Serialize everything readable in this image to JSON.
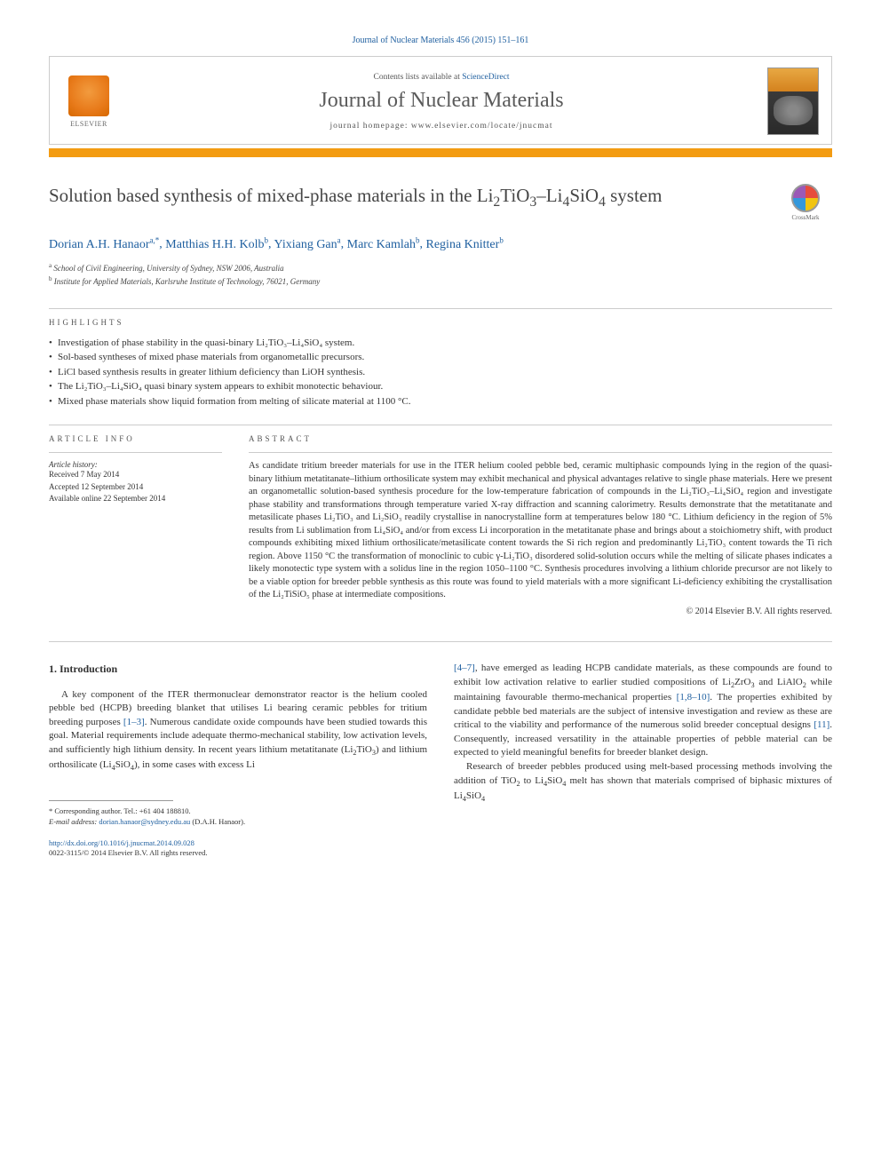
{
  "citation": "Journal of Nuclear Materials 456 (2015) 151–161",
  "header": {
    "contents_prefix": "Contents lists available at ",
    "contents_link": "ScienceDirect",
    "journal_name": "Journal of Nuclear Materials",
    "homepage_prefix": "journal homepage: ",
    "homepage_url": "www.elsevier.com/locate/jnucmat",
    "elsevier_label": "ELSEVIER"
  },
  "crossmark_label": "CrossMark",
  "title": "Solution based synthesis of mixed-phase materials in the Li₂TiO₃–Li₄SiO₄ system",
  "authors": [
    {
      "name": "Dorian A.H. Hanaor",
      "marks": "a,*"
    },
    {
      "name": "Matthias H.H. Kolb",
      "marks": "b"
    },
    {
      "name": "Yixiang Gan",
      "marks": "a"
    },
    {
      "name": "Marc Kamlah",
      "marks": "b"
    },
    {
      "name": "Regina Knitter",
      "marks": "b"
    }
  ],
  "affiliations": [
    {
      "mark": "a",
      "text": "School of Civil Engineering, University of Sydney, NSW 2006, Australia"
    },
    {
      "mark": "b",
      "text": "Institute for Applied Materials, Karlsruhe Institute of Technology, 76021, Germany"
    }
  ],
  "highlights_heading": "HIGHLIGHTS",
  "highlights": [
    "Investigation of phase stability in the quasi-binary Li₂TiO₃–Li₄SiO₄ system.",
    "Sol-based syntheses of mixed phase materials from organometallic precursors.",
    "LiCl based synthesis results in greater lithium deficiency than LiOH synthesis.",
    "The Li₂TiO₃–Li₄SiO₄ quasi binary system appears to exhibit monotectic behaviour.",
    "Mixed phase materials show liquid formation from melting of silicate material at 1100 °C."
  ],
  "article_info": {
    "heading": "ARTICLE INFO",
    "history_label": "Article history:",
    "received": "Received 7 May 2014",
    "accepted": "Accepted 12 September 2014",
    "online": "Available online 22 September 2014"
  },
  "abstract": {
    "heading": "ABSTRACT",
    "text": "As candidate tritium breeder materials for use in the ITER helium cooled pebble bed, ceramic multiphasic compounds lying in the region of the quasi-binary lithium metatitanate–lithium orthosilicate system may exhibit mechanical and physical advantages relative to single phase materials. Here we present an organometallic solution-based synthesis procedure for the low-temperature fabrication of compounds in the Li₂TiO₃–Li₄SiO₄ region and investigate phase stability and transformations through temperature varied X-ray diffraction and scanning calorimetry. Results demonstrate that the metatitanate and metasilicate phases Li₂TiO₃ and Li₂SiO₃ readily crystallise in nanocrystalline form at temperatures below 180 °C. Lithium deficiency in the region of 5% results from Li sublimation from Li₄SiO₄ and/or from excess Li incorporation in the metatitanate phase and brings about a stoichiometry shift, with product compounds exhibiting mixed lithium orthosilicate/metasilicate content towards the Si rich region and predominantly Li₂TiO₃ content towards the Ti rich region. Above 1150 °C the transformation of monoclinic to cubic γ-Li₂TiO₃ disordered solid-solution occurs while the melting of silicate phases indicates a likely monotectic type system with a solidus line in the region 1050–1100 °C. Synthesis procedures involving a lithium chloride precursor are not likely to be a viable option for breeder pebble synthesis as this route was found to yield materials with a more significant Li-deficiency exhibiting the crystallisation of the Li₂TiSiO₅ phase at intermediate compositions.",
    "copyright": "© 2014 Elsevier B.V. All rights reserved."
  },
  "intro": {
    "heading": "1. Introduction",
    "col1_para1": "A key component of the ITER thermonuclear demonstrator reactor is the helium cooled pebble bed (HCPB) breeding blanket that utilises Li bearing ceramic pebbles for tritium breeding purposes [1–3]. Numerous candidate oxide compounds have been studied towards this goal. Material requirements include adequate thermo-mechanical stability, low activation levels, and sufficiently high lithium density. In recent years lithium metatitanate (Li₂TiO₃) and lithium orthosilicate (Li₄SiO₄), in some cases with excess Li",
    "col2_para1": "[4–7], have emerged as leading HCPB candidate materials, as these compounds are found to exhibit low activation relative to earlier studied compositions of Li₂ZrO₃ and LiAlO₂ while maintaining favourable thermo-mechanical properties [1,8–10]. The properties exhibited by candidate pebble bed materials are the subject of intensive investigation and review as these are critical to the viability and performance of the numerous solid breeder conceptual designs [11]. Consequently, increased versatility in the attainable properties of pebble material can be expected to yield meaningful benefits for breeder blanket design.",
    "col2_para2": "Research of breeder pebbles produced using melt-based processing methods involving the addition of TiO₂ to Li₄SiO₄ melt has shown that materials comprised of biphasic mixtures of Li₄SiO₄"
  },
  "footnote": {
    "corr_label": "* Corresponding author. Tel.: +61 404 188810.",
    "email_label": "E-mail address:",
    "email": "dorian.hanaor@sydney.edu.au",
    "email_suffix": "(D.A.H. Hanaor)."
  },
  "doi": {
    "url": "http://dx.doi.org/10.1016/j.jnucmat.2014.09.028",
    "issn_line": "0022-3115/© 2014 Elsevier B.V. All rights reserved."
  },
  "colors": {
    "link": "#2060a0",
    "accent": "#f39c12",
    "text": "#333333",
    "border": "#cccccc"
  },
  "typography": {
    "title_size": 21,
    "journal_name_size": 24,
    "body_size": 11,
    "abstract_size": 10.5,
    "author_size": 14
  }
}
